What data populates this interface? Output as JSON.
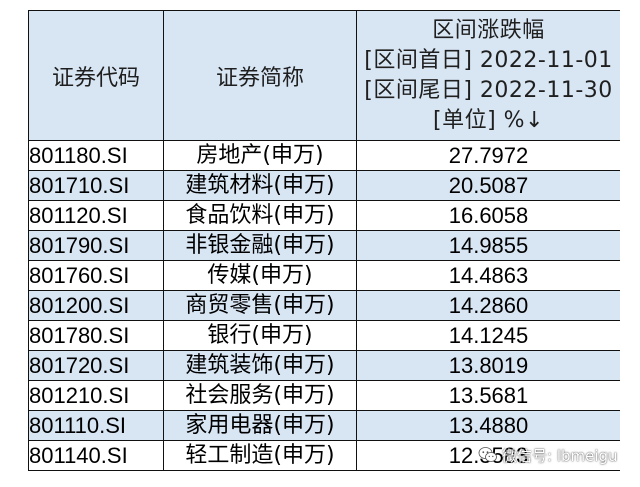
{
  "table": {
    "headers": {
      "code": "证券代码",
      "name": "证券简称",
      "change_lines": [
        "区间涨跌幅",
        "[区间首日] 2022-11-01",
        "[区间尾日] 2022-11-30",
        "[单位] %↓"
      ]
    },
    "rows": [
      {
        "code": "801180.SI",
        "name": "房地产(申万)",
        "pct": "27.7972"
      },
      {
        "code": "801710.SI",
        "name": "建筑材料(申万)",
        "pct": "20.5087"
      },
      {
        "code": "801120.SI",
        "name": "食品饮料(申万)",
        "pct": "16.6058"
      },
      {
        "code": "801790.SI",
        "name": "非银金融(申万)",
        "pct": "14.9855"
      },
      {
        "code": "801760.SI",
        "name": "传媒(申万)",
        "pct": "14.4863"
      },
      {
        "code": "801200.SI",
        "name": "商贸零售(申万)",
        "pct": "14.2860"
      },
      {
        "code": "801780.SI",
        "name": "银行(申万)",
        "pct": "14.1245"
      },
      {
        "code": "801720.SI",
        "name": "建筑装饰(申万)",
        "pct": "13.8019"
      },
      {
        "code": "801210.SI",
        "name": "社会服务(申万)",
        "pct": "13.5681"
      },
      {
        "code": "801110.SI",
        "name": "家用电器(申万)",
        "pct": "13.4880"
      },
      {
        "code": "801140.SI",
        "name": "轻工制造(申万)",
        "pct": "12.3583"
      }
    ]
  },
  "watermark": {
    "text": "微信号: lbmeigu",
    "icon": "wechat-icon"
  },
  "colors": {
    "header_bg": "#d8e6f4",
    "stripe_bg": "#d8e6f4",
    "border": "#111111"
  }
}
